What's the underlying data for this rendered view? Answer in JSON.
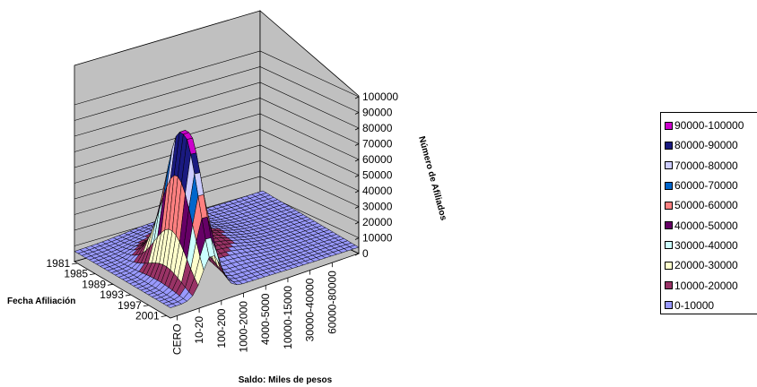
{
  "chart_data": {
    "type": "surface-3d",
    "title": "",
    "xlabel": "Saldo: Miles de pesos",
    "ylabel": "Fecha Afiliación",
    "zlabel": "Número de Afiliados",
    "x_tick_labels": [
      "CERO",
      "10-20",
      "100-200",
      "1000-2000",
      "4000-5000",
      "10000-15000",
      "30000-40000",
      "60000-80000"
    ],
    "y_tick_labels": [
      "1981",
      "1985",
      "1989",
      "1993",
      "1997",
      "2001"
    ],
    "z_ticks": [
      0,
      10000,
      20000,
      30000,
      40000,
      50000,
      60000,
      70000,
      80000,
      90000,
      100000
    ],
    "zlim": [
      0,
      100000
    ],
    "peak": {
      "saldo": "10-20",
      "fecha": "1997",
      "value": 98000
    },
    "legend": [
      {
        "label": "90000-100000",
        "color": "#cc00cc"
      },
      {
        "label": "80000-90000",
        "color": "#1a1a80"
      },
      {
        "label": "70000-80000",
        "color": "#ccccff"
      },
      {
        "label": "60000-70000",
        "color": "#0066cc"
      },
      {
        "label": "50000-60000",
        "color": "#ff8080"
      },
      {
        "label": "40000-50000",
        "color": "#660066"
      },
      {
        "label": "30000-40000",
        "color": "#ccffff"
      },
      {
        "label": "20000-30000",
        "color": "#ffffcc"
      },
      {
        "label": "10000-20000",
        "color": "#993366"
      },
      {
        "label": "0-10000",
        "color": "#9999ff"
      }
    ]
  }
}
